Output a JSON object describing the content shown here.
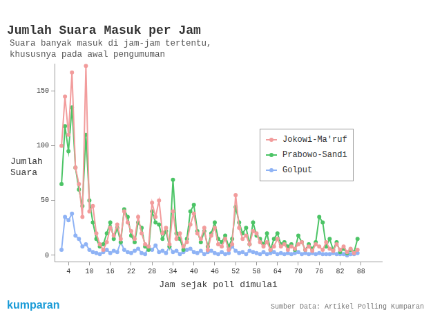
{
  "chart_data": {
    "type": "line",
    "title": "Jumlah Suara Masuk per Jam",
    "subtitle": [
      "Suara banyak masuk di jam-jam tertentu,",
      "khususnya pada awal pengumuman"
    ],
    "x_label": "Jam sejak poll dimulai",
    "y_label": [
      "Jumlah",
      "Suara"
    ],
    "source": "Sumber Data: Artikel Polling Kumparan",
    "logo_text": "kumparan",
    "x": [
      2,
      3,
      4,
      5,
      6,
      7,
      8,
      9,
      10,
      11,
      12,
      13,
      14,
      15,
      16,
      17,
      18,
      19,
      20,
      21,
      22,
      23,
      24,
      25,
      26,
      27,
      28,
      29,
      30,
      31,
      32,
      33,
      34,
      35,
      36,
      37,
      38,
      39,
      40,
      41,
      42,
      43,
      44,
      45,
      46,
      47,
      48,
      49,
      50,
      51,
      52,
      53,
      54,
      55,
      56,
      57,
      58,
      59,
      60,
      61,
      62,
      63,
      64,
      65,
      66,
      67,
      68,
      69,
      70,
      71,
      72,
      73,
      74,
      75,
      76,
      77,
      78,
      79,
      80,
      81,
      82,
      83,
      84,
      85,
      86,
      87
    ],
    "series": [
      {
        "name": "Jokowi-Ma'ruf",
        "color": "#f29c9c",
        "values": [
          100,
          145,
          110,
          167,
          80,
          65,
          35,
          173,
          40,
          45,
          20,
          10,
          5,
          12,
          25,
          18,
          28,
          15,
          40,
          30,
          22,
          15,
          35,
          20,
          10,
          8,
          48,
          35,
          50,
          20,
          25,
          10,
          40,
          15,
          20,
          8,
          12,
          28,
          38,
          20,
          15,
          25,
          5,
          18,
          25,
          10,
          8,
          15,
          5,
          10,
          55,
          25,
          15,
          18,
          10,
          22,
          20,
          12,
          8,
          12,
          5,
          8,
          15,
          8,
          10,
          5,
          8,
          6,
          10,
          12,
          5,
          8,
          4,
          10,
          8,
          5,
          12,
          6,
          4,
          10,
          5,
          8,
          3,
          6,
          2,
          5
        ]
      },
      {
        "name": "Prabowo-Sandi",
        "color": "#4cc466",
        "values": [
          65,
          118,
          95,
          135,
          80,
          60,
          45,
          110,
          50,
          30,
          15,
          8,
          10,
          20,
          30,
          15,
          25,
          12,
          42,
          35,
          18,
          12,
          30,
          25,
          8,
          5,
          40,
          30,
          28,
          15,
          22,
          8,
          69,
          20,
          15,
          5,
          15,
          40,
          46,
          22,
          12,
          22,
          8,
          20,
          30,
          15,
          12,
          18,
          8,
          15,
          44,
          30,
          20,
          25,
          10,
          30,
          18,
          15,
          10,
          20,
          5,
          15,
          20,
          10,
          12,
          8,
          10,
          5,
          18,
          12,
          5,
          10,
          6,
          12,
          35,
          30,
          8,
          15,
          5,
          12,
          3,
          6,
          2,
          5,
          3,
          15
        ]
      },
      {
        "name": "Golput",
        "color": "#8fb3f5",
        "values": [
          5,
          35,
          32,
          38,
          18,
          15,
          8,
          10,
          5,
          3,
          2,
          1,
          3,
          5,
          2,
          4,
          3,
          12,
          5,
          3,
          2,
          4,
          6,
          2,
          1,
          8,
          5,
          9,
          3,
          4,
          2,
          8,
          3,
          4,
          1,
          3,
          5,
          6,
          3,
          2,
          4,
          1,
          3,
          4,
          2,
          1,
          3,
          1,
          2,
          8,
          4,
          2,
          3,
          1,
          4,
          3,
          2,
          1,
          3,
          1,
          2,
          3,
          1,
          2,
          1,
          2,
          1,
          2,
          3,
          1,
          2,
          1,
          2,
          1,
          2,
          1,
          1,
          1,
          2,
          1,
          1,
          1,
          0,
          1,
          1,
          2
        ]
      }
    ],
    "xlim": [
      0,
      94
    ],
    "xticks": [
      4,
      10,
      16,
      22,
      28,
      34,
      40,
      46,
      52,
      58,
      64,
      70,
      76,
      82,
      88
    ],
    "ylim": [
      -6,
      175
    ],
    "yticks": [
      0,
      50,
      100,
      150
    ],
    "grid": false,
    "legend": "right",
    "marker": "circle"
  }
}
